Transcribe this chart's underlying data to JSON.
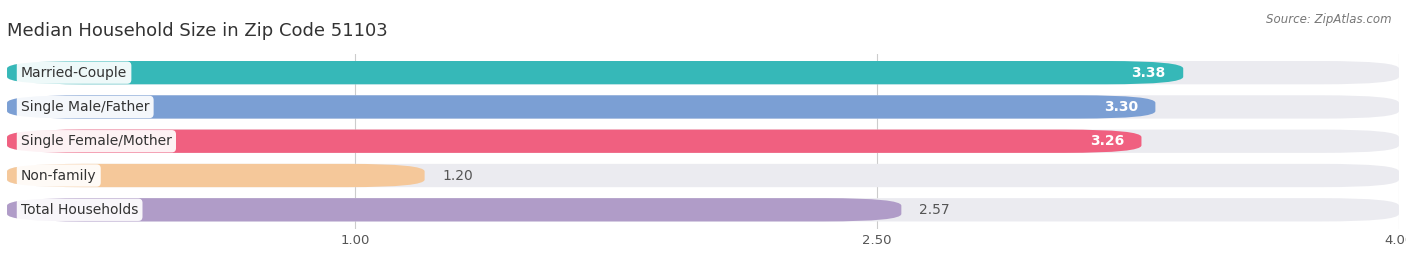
{
  "title": "Median Household Size in Zip Code 51103",
  "source": "Source: ZipAtlas.com",
  "categories": [
    "Married-Couple",
    "Single Male/Father",
    "Single Female/Mother",
    "Non-family",
    "Total Households"
  ],
  "values": [
    3.38,
    3.3,
    3.26,
    1.2,
    2.57
  ],
  "bar_colors": [
    "#36b8b8",
    "#7b9fd4",
    "#f06080",
    "#f5c89a",
    "#b09cc8"
  ],
  "value_inside": [
    true,
    true,
    true,
    false,
    false
  ],
  "xlim": [
    0,
    4.0
  ],
  "xmin": 0.0,
  "xticks": [
    1.0,
    2.5,
    4.0
  ],
  "background_color": "#ffffff",
  "bar_background_color": "#ebebf0",
  "title_fontsize": 13,
  "label_fontsize": 10,
  "value_fontsize": 10
}
